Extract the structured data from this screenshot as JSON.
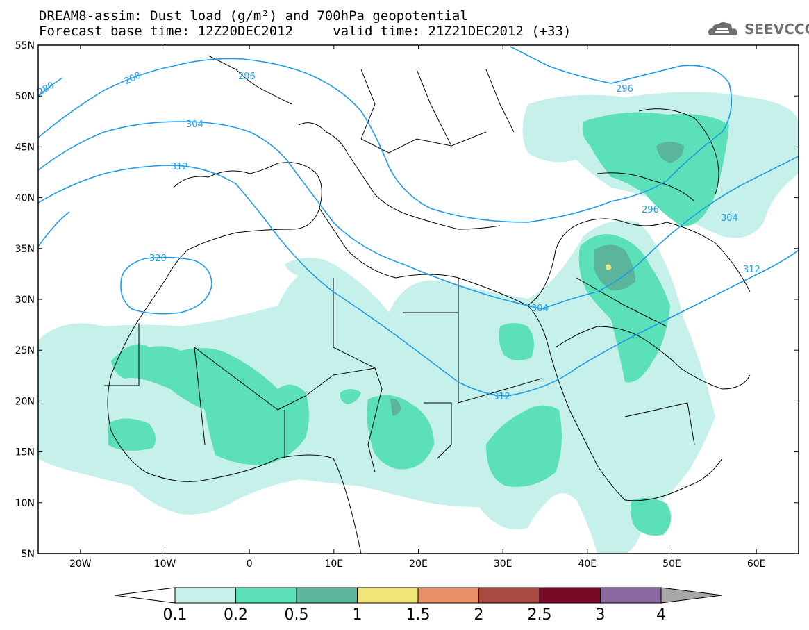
{
  "title_line1": "DREAM8-assim: Dust load (g/m²) and 700hPa geopotential",
  "title_line2": "Forecast base time: 12Z20DEC2012     valid time: 21Z21DEC2012 (+33)",
  "logo_text": "SEEVCCC",
  "logo_icon": "cloud-icon",
  "axes": {
    "lon_range": [
      -25,
      65
    ],
    "lat_range": [
      5,
      55
    ],
    "lon_ticks": [
      {
        "value": -20,
        "label": "20W"
      },
      {
        "value": -10,
        "label": "10W"
      },
      {
        "value": 0,
        "label": "0"
      },
      {
        "value": 10,
        "label": "10E"
      },
      {
        "value": 20,
        "label": "20E"
      },
      {
        "value": 30,
        "label": "30E"
      },
      {
        "value": 40,
        "label": "40E"
      },
      {
        "value": 50,
        "label": "50E"
      },
      {
        "value": 60,
        "label": "60E"
      }
    ],
    "lat_ticks": [
      {
        "value": 55,
        "label": "55N"
      },
      {
        "value": 50,
        "label": "50N"
      },
      {
        "value": 45,
        "label": "45N"
      },
      {
        "value": 40,
        "label": "40N"
      },
      {
        "value": 35,
        "label": "35N"
      },
      {
        "value": 30,
        "label": "30N"
      },
      {
        "value": 25,
        "label": "25N"
      },
      {
        "value": 20,
        "label": "20N"
      },
      {
        "value": 15,
        "label": "15N"
      },
      {
        "value": 10,
        "label": "10N"
      },
      {
        "value": 5,
        "label": "5N"
      }
    ]
  },
  "contour_labels": {
    "c280": "280",
    "c288": "288",
    "c296a": "296",
    "c296b": "296",
    "c296c": "296",
    "c304a": "304",
    "c304b": "304",
    "c304c": "304",
    "c312a": "312",
    "c312b": "312",
    "c312c": "312",
    "c320": "320"
  },
  "colorbar": {
    "labels": [
      "0.1",
      "0.2",
      "0.5",
      "1",
      "1.5",
      "2",
      "2.5",
      "3",
      "4"
    ],
    "colors": [
      "#ffffff",
      "#c6f0ea",
      "#5be0b7",
      "#5ab59b",
      "#f0e678",
      "#e8906a",
      "#a84a40",
      "#780a28",
      "#8a6aa0",
      "#a8a8a8"
    ]
  },
  "colors": {
    "contour": "#1e9ce8",
    "dust_01": "#c6f0ea",
    "dust_02": "#5be0b7",
    "dust_05": "#5ab59b",
    "dust_10": "#f0e678"
  }
}
